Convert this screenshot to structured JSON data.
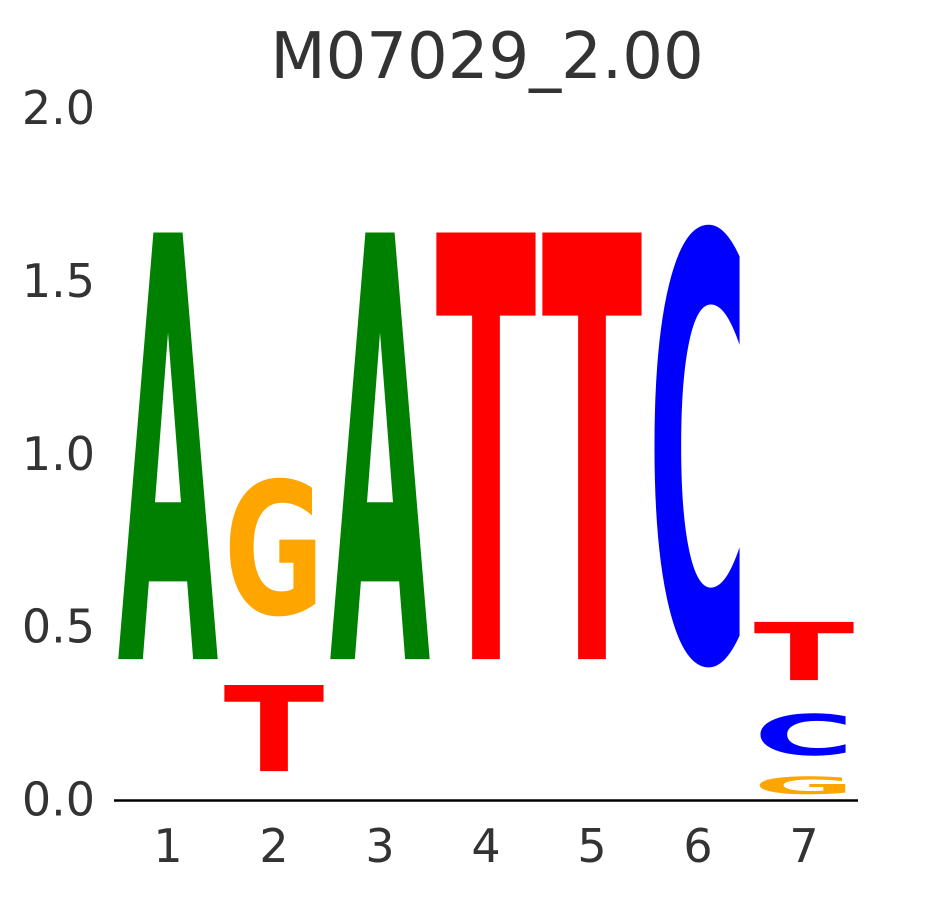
{
  "figure": {
    "background_color": "#ffffff",
    "text_color": "#333333",
    "axis_color": "#000000"
  },
  "chart_data": {
    "type": "sequence-logo",
    "title": "M07029_2.00",
    "xlabel": "",
    "ylabel": "",
    "ylim": [
      0,
      2
    ],
    "grid": false,
    "legend": null,
    "y_ticks": [
      "0.0",
      "0.5",
      "1.0",
      "1.5",
      "2.0"
    ],
    "x_ticks": [
      "1",
      "2",
      "3",
      "4",
      "5",
      "6",
      "7"
    ],
    "base_colors": {
      "A": "#008000",
      "C": "#0000ff",
      "G": "#ffa500",
      "T": "#ff0000"
    },
    "positions": [
      {
        "position": 1,
        "stack": [
          {
            "base": "A",
            "from": 0.0,
            "to": 1.98
          }
        ]
      },
      {
        "position": 2,
        "stack": [
          {
            "base": "T",
            "from": 0.0,
            "to": 0.4
          },
          {
            "base": "G",
            "from": 0.41,
            "to": 1.03
          }
        ]
      },
      {
        "position": 3,
        "stack": [
          {
            "base": "A",
            "from": 0.0,
            "to": 1.98
          }
        ]
      },
      {
        "position": 4,
        "stack": [
          {
            "base": "T",
            "from": 0.0,
            "to": 1.98
          }
        ]
      },
      {
        "position": 5,
        "stack": [
          {
            "base": "T",
            "from": 0.0,
            "to": 1.98
          }
        ]
      },
      {
        "position": 6,
        "stack": [
          {
            "base": "C",
            "from": 0.0,
            "to": 1.98
          }
        ]
      },
      {
        "position": 7,
        "stack": [
          {
            "base": "G",
            "from": 0.0,
            "to": 0.08
          },
          {
            "base": "C",
            "from": 0.09,
            "to": 0.28
          },
          {
            "base": "T",
            "from": 0.29,
            "to": 0.56
          }
        ]
      }
    ]
  }
}
